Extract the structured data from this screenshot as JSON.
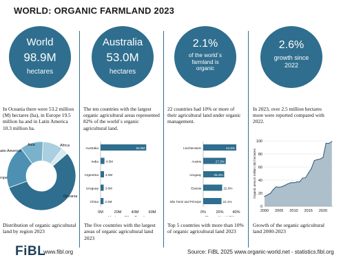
{
  "header": {
    "title": "WORLD: ORGANIC FARMLAND 2023"
  },
  "circles": [
    {
      "top": "World",
      "value": "98.9M",
      "unit": "hectares"
    },
    {
      "top": "Australia",
      "value": "53.0M",
      "unit": "hectares"
    },
    {
      "value": "2.1%",
      "unit": "of the world´s farmland is organic"
    },
    {
      "value": "2.6%",
      "unit": "growth since 2022"
    }
  ],
  "texts": [
    "In Oceania there were 53.2 million (M) hectares (ha), in Europe 19.5 million ha and in Latin America 10.3 million ha.",
    "The ten countries with the largest organic agricultural areas represented 82% of the world´s organic agricultural land.",
    "22 countries had 10% or more of their agricultural land under organic management.",
    "In 2023, over 2.5 million hectares more were reported compared with 2022."
  ],
  "captions": [
    "Distribution of organic agricultural land by region 2023",
    "The five countries with the largest areas of organic agricultural land 2023",
    "Top 5 countries with more than 10% of organic agricultural land 2023",
    "Growth of the organic agricultural land 2000-2023"
  ],
  "footer": {
    "logo": "FiBL",
    "website": "www.fibl.org",
    "source": "Source: FiBL 2025 www.organic-world.net - statistics.fibl.org"
  },
  "colors": {
    "accent": "#2f6e8e",
    "bar": "#2f6e8e",
    "area": "#aebfcc",
    "line": "#2d5676"
  },
  "chart_data": [
    {
      "type": "pie",
      "title": "",
      "categories": [
        "Asia",
        "Africa",
        "Oceania",
        "Europe",
        "Latin America"
      ],
      "values": [
        9.1,
        3.1,
        53.2,
        19.5,
        10.3
      ],
      "labels": [
        "Asia",
        "Africa",
        "Oceania",
        "rope",
        "atin America"
      ],
      "colors": [
        "#a9cfe0",
        "#d8e9f0",
        "#2f6e8e",
        "#4d90b4",
        "#7ab2cc"
      ],
      "donut": true
    },
    {
      "type": "bar",
      "orientation": "horizontal",
      "categories": [
        "Australia",
        "India",
        "Argentina",
        "Uruguay",
        "China"
      ],
      "values": [
        53.0,
        4.5,
        4.0,
        3.6,
        3.4
      ],
      "data_labels": [
        "53.0M",
        "4.5M",
        "4.0M",
        "3.6M",
        "3.4M"
      ],
      "xlabel": "Hectares (M=millions)",
      "xlim": [
        0,
        60
      ],
      "xticks": [
        "0M",
        "20M",
        "40M",
        "60M"
      ]
    },
    {
      "type": "bar",
      "orientation": "horizontal",
      "categories": [
        "Liechtenstein",
        "Austria",
        "Uruguay",
        "Estonia",
        "São Tomé and Príncipe"
      ],
      "values": [
        44.6,
        27.3,
        25.4,
        22.9,
        22.1
      ],
      "data_labels": [
        "44.6%",
        "27.3%",
        "25.4%",
        "22.9%",
        "22.1%"
      ],
      "xlabel": "Share of total (%)",
      "xlim": [
        0,
        40
      ],
      "xticks": [
        "0%",
        "20%",
        "40%"
      ]
    },
    {
      "type": "area",
      "x": [
        2000,
        2001,
        2002,
        2003,
        2004,
        2005,
        2006,
        2007,
        2008,
        2009,
        2010,
        2011,
        2012,
        2013,
        2014,
        2015,
        2016,
        2017,
        2018,
        2019,
        2020,
        2021,
        2022,
        2023
      ],
      "values": [
        15,
        17.3,
        19.8,
        25.7,
        29.8,
        29,
        30.1,
        32.1,
        34.4,
        36.1,
        36,
        37.2,
        37.5,
        43.1,
        43.6,
        50.9,
        57.8,
        69.8,
        71.5,
        72.3,
        74.9,
        96.4,
        96.4,
        98.9
      ],
      "ylabel": "Organic area in million (M) hectares",
      "ylim": [
        0,
        100
      ],
      "yticks": [
        "0",
        "20",
        "40",
        "60",
        "80",
        "100"
      ],
      "xticks": [
        "2000",
        "2005",
        "2010",
        "2015",
        "2020"
      ]
    }
  ]
}
